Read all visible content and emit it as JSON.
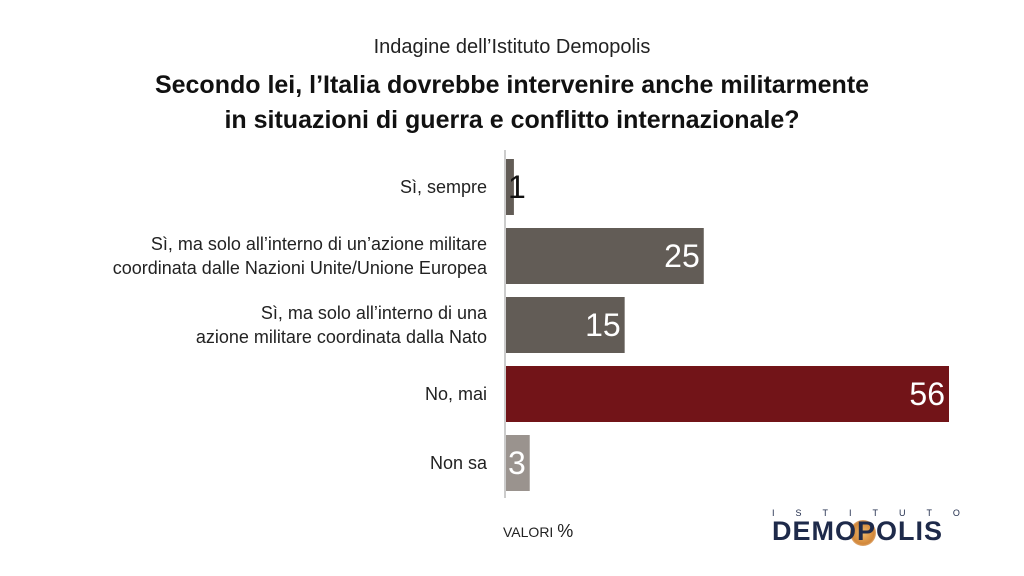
{
  "chart_data": {
    "type": "bar",
    "orientation": "horizontal",
    "subtitle": "Indagine dell’Istituto Demopolis",
    "title_lines": [
      "Secondo lei, l’Italia dovrebbe intervenire anche militarmente",
      "in situazioni di guerra e conflitto internazionale?"
    ],
    "categories": [
      [
        "Sì, sempre"
      ],
      [
        "Sì, ma solo all’interno di un’azione militare",
        "coordinata dalle Nazioni Unite/Unione Europea"
      ],
      [
        "Sì, ma solo all’interno di una",
        "azione militare coordinata dalla Nato"
      ],
      [
        "No, mai"
      ],
      [
        "Non sa"
      ]
    ],
    "values": [
      1,
      25,
      15,
      56,
      3
    ],
    "value_labels": [
      "1",
      "25",
      "15",
      "56",
      "3"
    ],
    "bar_colors": [
      "#625c56",
      "#625c56",
      "#625c56",
      "#721418",
      "#9a938e"
    ],
    "unit_label": "VALORI",
    "unit_symbol": "%",
    "xlim": [
      0,
      56
    ],
    "grid": false,
    "legend": "none"
  },
  "logo": {
    "top": "ISTITUTO",
    "main": "DEMOPOLIS"
  }
}
